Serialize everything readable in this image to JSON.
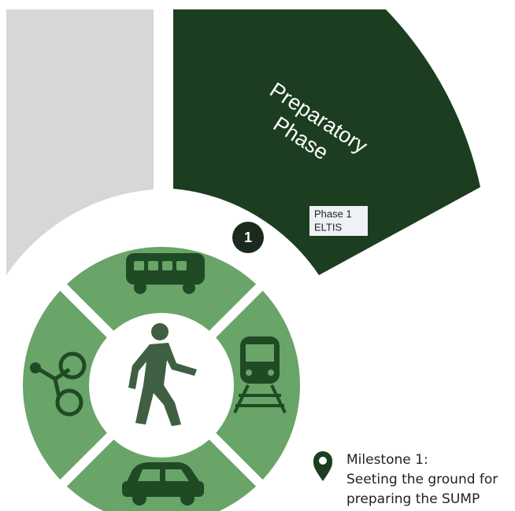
{
  "phase": {
    "title_lines": [
      "Preparatory",
      "Phase"
    ],
    "label_lines": [
      "Phase 1",
      "ELTIS"
    ],
    "number": "1"
  },
  "milestone": {
    "lines": [
      "Milestone 1:",
      "Seeting the ground for",
      "preparing the SUMP"
    ]
  }
}
